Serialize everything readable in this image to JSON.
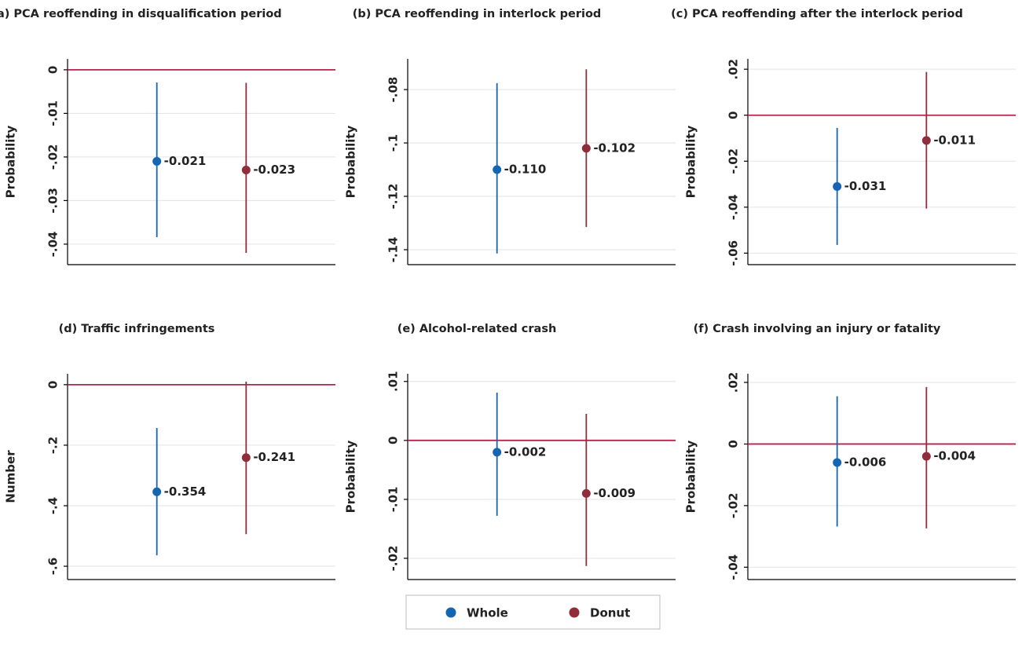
{
  "legend": {
    "entries": [
      {
        "name": "Whole",
        "color": "#1565b0"
      },
      {
        "name": "Donut",
        "color": "#8f2d3b"
      }
    ]
  },
  "chart_data": [
    {
      "type": "errorbar",
      "title": "(a) PCA reoffending in disqualification period",
      "ylabel": "Probability",
      "values": [
        -0.021,
        -0.023
      ],
      "value_labels": [
        "-0.021",
        "-0.023"
      ],
      "lower": [
        -0.0384,
        -0.042
      ],
      "upper": [
        -0.0029,
        -0.003
      ],
      "ylim": [
        -0.0447,
        0.0025
      ],
      "yticks": [
        0,
        {
          "value": -0.01,
          "label": "-.01"
        },
        {
          "value": -0.02,
          "label": "-.02"
        },
        {
          "value": -0.03,
          "label": "-.03"
        },
        {
          "value": -0.04,
          "label": "-.04"
        }
      ],
      "refline": 0,
      "refline_color": "#b8224a",
      "grid": true
    },
    {
      "type": "errorbar",
      "title": "(b) PCA reoffending in interlock period",
      "ylabel": "Probability",
      "values": [
        -0.11,
        -0.102
      ],
      "value_labels": [
        "-0.110",
        "-0.102"
      ],
      "lower": [
        -0.1414,
        -0.1315
      ],
      "upper": [
        -0.0776,
        -0.0724
      ],
      "ylim": [
        -0.1456,
        -0.0685
      ],
      "yticks": [
        {
          "value": -0.08,
          "label": "-.08"
        },
        {
          "value": -0.1,
          "label": "-.1"
        },
        {
          "value": -0.12,
          "label": "-.12"
        },
        {
          "value": -0.14,
          "label": "-.14"
        }
      ],
      "grid": true
    },
    {
      "type": "errorbar",
      "title": "(c) PCA reoffending after the interlock period",
      "ylabel": "Probability",
      "values": [
        -0.031,
        -0.011
      ],
      "value_labels": [
        "-0.031",
        "-0.011"
      ],
      "lower": [
        -0.0564,
        -0.0406
      ],
      "upper": [
        -0.0055,
        0.0188
      ],
      "ylim": [
        -0.065,
        0.0245
      ],
      "yticks": [
        {
          "value": 0.02,
          "label": ".02"
        },
        0,
        {
          "value": -0.02,
          "label": "-.02"
        },
        {
          "value": -0.04,
          "label": "-.04"
        },
        {
          "value": -0.06,
          "label": "-.06"
        }
      ],
      "refline": 0,
      "refline_color": "#b8224a",
      "grid": true
    },
    {
      "type": "errorbar",
      "title": "(d) Traffic infringements",
      "ylabel": "Number",
      "values": [
        -0.354,
        -0.241
      ],
      "value_labels": [
        "-0.354",
        "-0.241"
      ],
      "lower": [
        -0.564,
        -0.494
      ],
      "upper": [
        -0.143,
        0.01
      ],
      "ylim": [
        -0.644,
        0.036
      ],
      "yticks": [
        0,
        {
          "value": -0.2,
          "label": "-.2"
        },
        {
          "value": -0.4,
          "label": "-.4"
        },
        {
          "value": -0.6,
          "label": "-.6"
        }
      ],
      "refline": 0,
      "refline_color": "#b8224a",
      "grid": true
    },
    {
      "type": "errorbar",
      "title": "(e) Alcohol-related crash",
      "ylabel": "Probability",
      "values": [
        -0.002,
        -0.009
      ],
      "value_labels": [
        "-0.002",
        "-0.009"
      ],
      "lower": [
        -0.0128,
        -0.0213
      ],
      "upper": [
        0.0081,
        0.0045
      ],
      "ylim": [
        -0.0236,
        0.0113
      ],
      "yticks": [
        {
          "value": 0.01,
          "label": ".01"
        },
        0,
        {
          "value": -0.01,
          "label": "-.01"
        },
        {
          "value": -0.02,
          "label": "-.02"
        }
      ],
      "refline": 0,
      "refline_color": "#b8224a",
      "grid": true
    },
    {
      "type": "errorbar",
      "title": "(f) Crash involving an injury or fatality",
      "ylabel": "Probability",
      "values": [
        -0.006,
        -0.004
      ],
      "value_labels": [
        "-0.006",
        "-0.004"
      ],
      "lower": [
        -0.0268,
        -0.0274
      ],
      "upper": [
        0.0155,
        0.0185
      ],
      "ylim": [
        -0.044,
        0.0228
      ],
      "yticks": [
        {
          "value": 0.02,
          "label": ".02"
        },
        0,
        {
          "value": -0.02,
          "label": "-.02"
        },
        {
          "value": -0.04,
          "label": "-.04"
        }
      ],
      "refline": 0,
      "refline_color": "#b8224a",
      "grid": true
    }
  ]
}
